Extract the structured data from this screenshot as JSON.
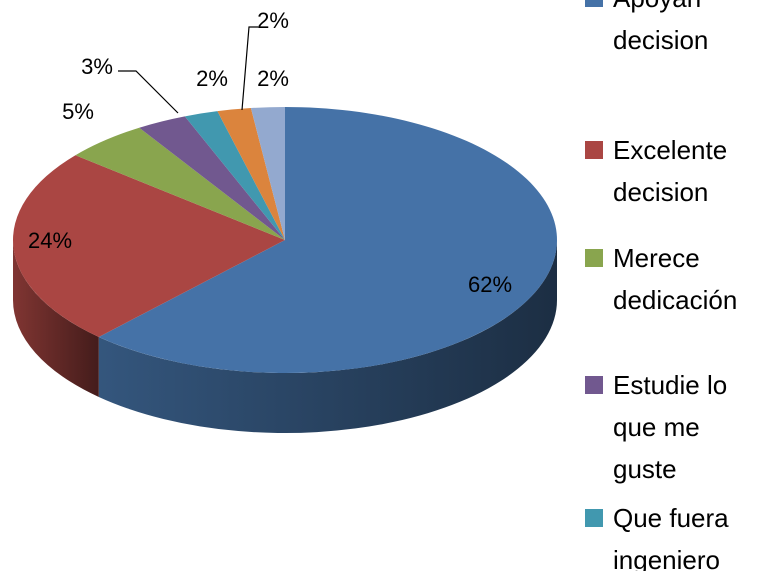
{
  "chart_data": {
    "type": "pie3d",
    "categories": [
      "Apoyan decision",
      "Excelente decision",
      "Merece dedicación",
      "Estudie lo que me guste",
      "Que fuera ingeniero",
      null,
      null
    ],
    "values": [
      62,
      24,
      5,
      3,
      2,
      2,
      2
    ],
    "value_labels": [
      "62%",
      "24%",
      "5%",
      "3%",
      "2%",
      "2%",
      "2%"
    ],
    "colors": [
      "#4572a7",
      "#aa4643",
      "#89a54e",
      "#71588f",
      "#4198af",
      "#db843d",
      "#93a9cf"
    ],
    "legend": "right"
  }
}
